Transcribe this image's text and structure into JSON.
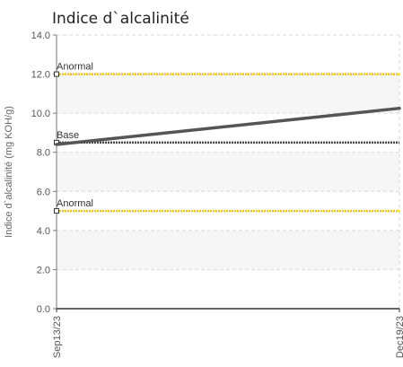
{
  "chart_data": {
    "type": "line",
    "title": "Indice d`alcalinité",
    "ylabel": "Indice d`alcalinité (mg KOH/g)",
    "xlabel": "",
    "ylim": [
      0,
      14
    ],
    "yticks": [
      "0.0",
      "2.0",
      "4.0",
      "6.0",
      "8.0",
      "10.0",
      "12.0",
      "14.0"
    ],
    "x_categories": [
      "Sep13/23",
      "Dec19/23"
    ],
    "series": [
      {
        "values": [
          8.4,
          10.25
        ],
        "color": "#555555"
      }
    ],
    "reference_lines": [
      {
        "label": "Anormal",
        "value": 12.0,
        "color": "#f0c419"
      },
      {
        "label": "Base",
        "value": 8.5,
        "color": "#444444"
      },
      {
        "label": "Anormal",
        "value": 5.0,
        "color": "#f0c419"
      }
    ],
    "bands": [
      {
        "from": 10.0,
        "to": 12.0
      },
      {
        "from": 6.0,
        "to": 8.0
      },
      {
        "from": 2.0,
        "to": 4.0
      }
    ],
    "grid": true,
    "legend": "none"
  }
}
